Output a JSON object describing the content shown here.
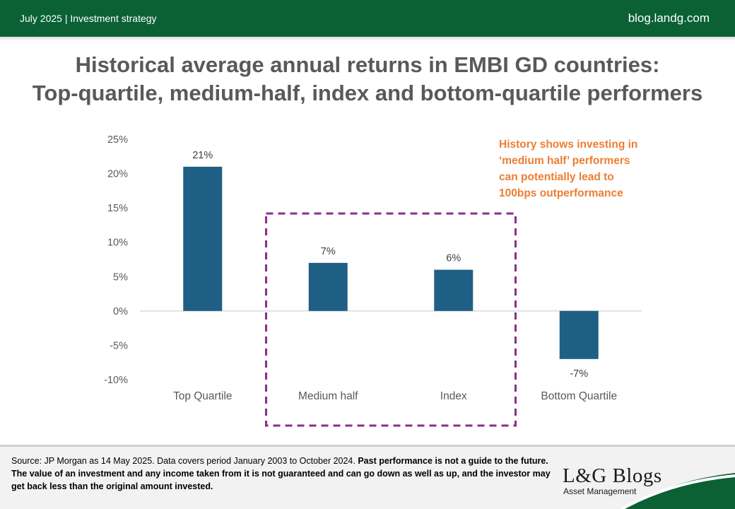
{
  "header": {
    "date": "July 2025",
    "category": "Investment strategy",
    "site": "blog.landg.com"
  },
  "title": {
    "line1": "Historical average annual returns in EMBI GD countries:",
    "line2": "Top-quartile, medium-half, index and bottom-quartile performers"
  },
  "callout": {
    "lines": [
      "History shows investing in",
      "‘medium half’ performers",
      "can potentially lead to",
      "100bps outperformance"
    ]
  },
  "chart_data": {
    "type": "bar",
    "categories": [
      "Top Quartile",
      "Medium half",
      "Index",
      "Bottom Quartile"
    ],
    "values": [
      21,
      7,
      6,
      -7
    ],
    "data_labels": [
      "21%",
      "7%",
      "6%",
      "-7%"
    ],
    "ylim": [
      -10,
      25
    ],
    "yticks": [
      25,
      20,
      15,
      10,
      5,
      0,
      -5,
      -10
    ],
    "ytick_labels": [
      "25%",
      "20%",
      "15%",
      "10%",
      "5%",
      "0%",
      "-5%",
      "-10%"
    ],
    "title": "",
    "xlabel": "",
    "ylabel": "",
    "grid": false,
    "legend": "none",
    "highlight": {
      "categories": [
        "Medium half",
        "Index"
      ],
      "style": "dashed box"
    },
    "colors": {
      "bar": "#1f5f85",
      "axis": "#d9d9d9",
      "highlight": "#8e2b8e",
      "tick_text": "#595959",
      "label_text": "#404040"
    }
  },
  "footer": {
    "source": "Source: JP Morgan as 14 May 2025. Data covers period January 2003 to October 2024. ",
    "disclaimer": "Past performance is not a guide to the future. The value of an investment and any income taken from it is not guaranteed and can go down as well as up, and the investor may get back less than the original amount invested.",
    "logo": "L&G Blogs",
    "logo_sub": "Asset Management"
  },
  "colors": {
    "header_bg": "#0b6134",
    "callout": "#ed7d31",
    "footer_bg": "#f2f2f2"
  }
}
